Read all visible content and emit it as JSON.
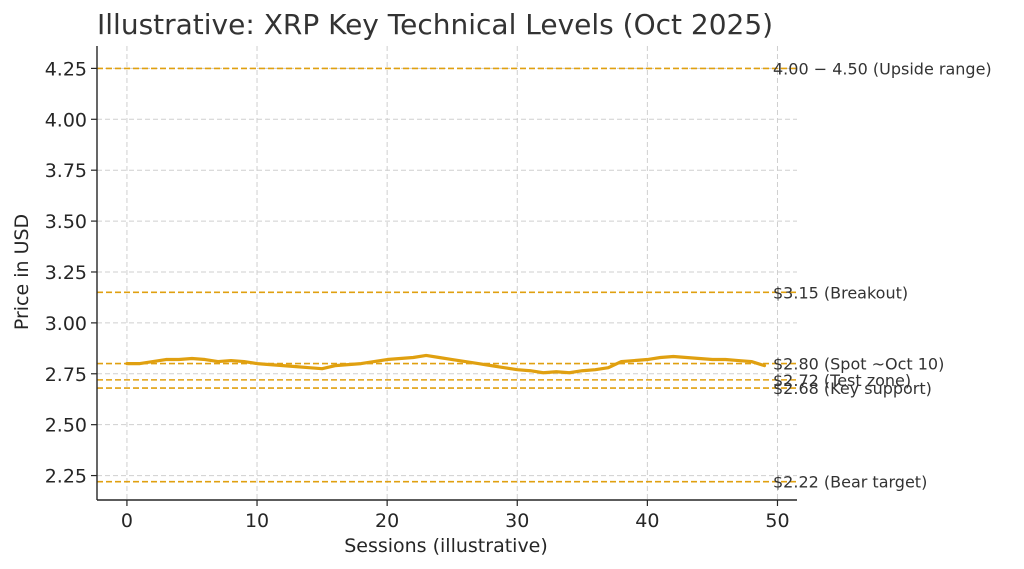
{
  "chart_data": {
    "type": "line",
    "title": "Illustrative: XRP Key Technical Levels (Oct 2025)",
    "xlabel": "Sessions (illustrative)",
    "ylabel": "Price in USD",
    "xlim": [
      -2.3,
      51.5
    ],
    "ylim": [
      2.13,
      4.36
    ],
    "grid": true,
    "xticks": [
      0,
      10,
      20,
      30,
      40,
      50
    ],
    "xtick_labels": [
      "0",
      "10",
      "20",
      "30",
      "40",
      "50"
    ],
    "yticks": [
      2.25,
      2.5,
      2.75,
      3.0,
      3.25,
      3.5,
      3.75,
      4.0,
      4.25
    ],
    "ytick_labels": [
      "2.25",
      "2.50",
      "2.75",
      "3.00",
      "3.25",
      "3.50",
      "3.75",
      "4.00",
      "4.25"
    ],
    "series": [
      {
        "color": "#e0a010",
        "x": [
          0,
          1,
          2,
          3,
          4,
          5,
          6,
          7,
          8,
          9,
          10,
          11,
          12,
          13,
          14,
          15,
          16,
          17,
          18,
          19,
          20,
          21,
          22,
          23,
          24,
          25,
          26,
          27,
          28,
          29,
          30,
          31,
          32,
          33,
          34,
          35,
          36,
          37,
          38,
          39,
          40,
          41,
          42,
          43,
          44,
          45,
          46,
          47,
          48,
          49
        ],
        "values": [
          2.8,
          2.8,
          2.81,
          2.82,
          2.82,
          2.825,
          2.82,
          2.81,
          2.815,
          2.81,
          2.8,
          2.795,
          2.79,
          2.785,
          2.78,
          2.775,
          2.79,
          2.795,
          2.8,
          2.81,
          2.82,
          2.825,
          2.83,
          2.84,
          2.83,
          2.82,
          2.81,
          2.8,
          2.79,
          2.78,
          2.77,
          2.765,
          2.755,
          2.76,
          2.755,
          2.765,
          2.77,
          2.78,
          2.81,
          2.815,
          2.82,
          2.83,
          2.835,
          2.83,
          2.825,
          2.82,
          2.82,
          2.815,
          2.81,
          2.79
        ]
      }
    ],
    "levels": [
      {
        "value": 4.25,
        "label": "4.00 − 4.50 (Upside range)",
        "color": "#e0a010"
      },
      {
        "value": 3.15,
        "label": "$3.15 (Breakout)",
        "color": "#e0a010"
      },
      {
        "value": 2.8,
        "label": "$2.80 (Spot ~Oct 10)",
        "color": "#e0a010"
      },
      {
        "value": 2.72,
        "label": "$2.72 (Test zone)",
        "color": "#e0a010"
      },
      {
        "value": 2.68,
        "label": "$2.68 (Key support)",
        "color": "#e0a010"
      },
      {
        "value": 2.22,
        "label": "$2.22 (Bear target)",
        "color": "#e0a010"
      }
    ]
  }
}
